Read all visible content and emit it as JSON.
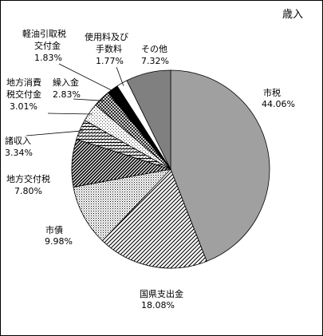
{
  "chart_data": {
    "type": "pie",
    "title": "歳入",
    "slices": [
      {
        "name": "市税",
        "value": 44.06,
        "label": "44.06%",
        "fill": "solid-mid-gray"
      },
      {
        "name": "国県支出金",
        "value": 18.08,
        "label": "18.08%",
        "fill": "diagonal-hatch"
      },
      {
        "name": "市債",
        "value": 9.98,
        "label": "9.98%",
        "fill": "dots"
      },
      {
        "name": "地方交付税",
        "value": 7.8,
        "label": "7.80%",
        "fill": "dense-diagonal-stripes"
      },
      {
        "name": "諸収入",
        "value": 3.34,
        "label": "3.34%",
        "fill": "horizontal-stripes"
      },
      {
        "name": "地方消費税交付金",
        "value": 3.01,
        "label": "3.01%",
        "fill": "light-dots"
      },
      {
        "name": "繰入金",
        "value": 2.83,
        "label": "2.83%",
        "fill": "checker"
      },
      {
        "name": "軽油引取税交付金",
        "value": 1.83,
        "label": "1.83%",
        "fill": "solid-black"
      },
      {
        "name": "使用料及び手数料",
        "value": 1.77,
        "label": "1.77%",
        "fill": "white"
      },
      {
        "name": "その他",
        "value": 7.32,
        "label": "7.32%",
        "fill": "solid-dark-gray"
      }
    ],
    "labels": {
      "shizei": {
        "l1": "市税",
        "l2": "44.06%"
      },
      "kokken": {
        "l1": "国県支出金",
        "l2": "18.08%"
      },
      "shisai": {
        "l1": "市債",
        "l2": "9.98%"
      },
      "chihoukofu": {
        "l1": "地方交付税",
        "l2": "7.80%"
      },
      "shoshu": {
        "l1": "諸収入",
        "l2": "3.34%"
      },
      "chihoushouhi": {
        "l1": "地方消費",
        "l2": "税交付金",
        "l3": "3.01%"
      },
      "kuriire": {
        "l1": "繰入金",
        "l2": "2.83%"
      },
      "keiyu": {
        "l1": "軽油引取税",
        "l2": "交付金",
        "l3": "1.83%"
      },
      "shiyouryou": {
        "l1": "使用料及び",
        "l2": "手数料",
        "l3": "1.77%"
      },
      "sonota": {
        "l1": "その他",
        "l2": "7.32%"
      }
    },
    "colors": {
      "mid_gray": "#a0a0a0",
      "dark_gray": "#808080",
      "black": "#000000",
      "white": "#ffffff"
    }
  }
}
